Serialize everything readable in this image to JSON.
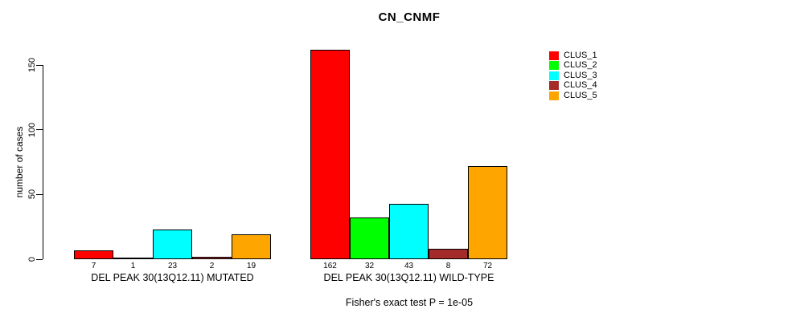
{
  "chart_data": {
    "type": "bar",
    "title": "CN_CNMF",
    "ylabel": "number of cases",
    "footnote": "Fisher's exact test P = 1e-05",
    "ylim": [
      0,
      150
    ],
    "yticks": [
      0,
      50,
      100,
      150
    ],
    "grid": false,
    "legend_position": "top-right",
    "show_bar_values": true,
    "series": [
      {
        "name": "CLUS_1",
        "color": "#FF0000"
      },
      {
        "name": "CLUS_2",
        "color": "#00FF00"
      },
      {
        "name": "CLUS_3",
        "color": "#00FFFF"
      },
      {
        "name": "CLUS_4",
        "color": "#A52A2A"
      },
      {
        "name": "CLUS_5",
        "color": "#FFA500"
      }
    ],
    "groups": [
      {
        "label": "DEL PEAK 30(13Q12.11) MUTATED",
        "values": [
          7,
          1,
          23,
          2,
          19
        ]
      },
      {
        "label": "DEL PEAK 30(13Q12.11) WILD-TYPE",
        "values": [
          162,
          32,
          43,
          8,
          72
        ]
      }
    ]
  }
}
